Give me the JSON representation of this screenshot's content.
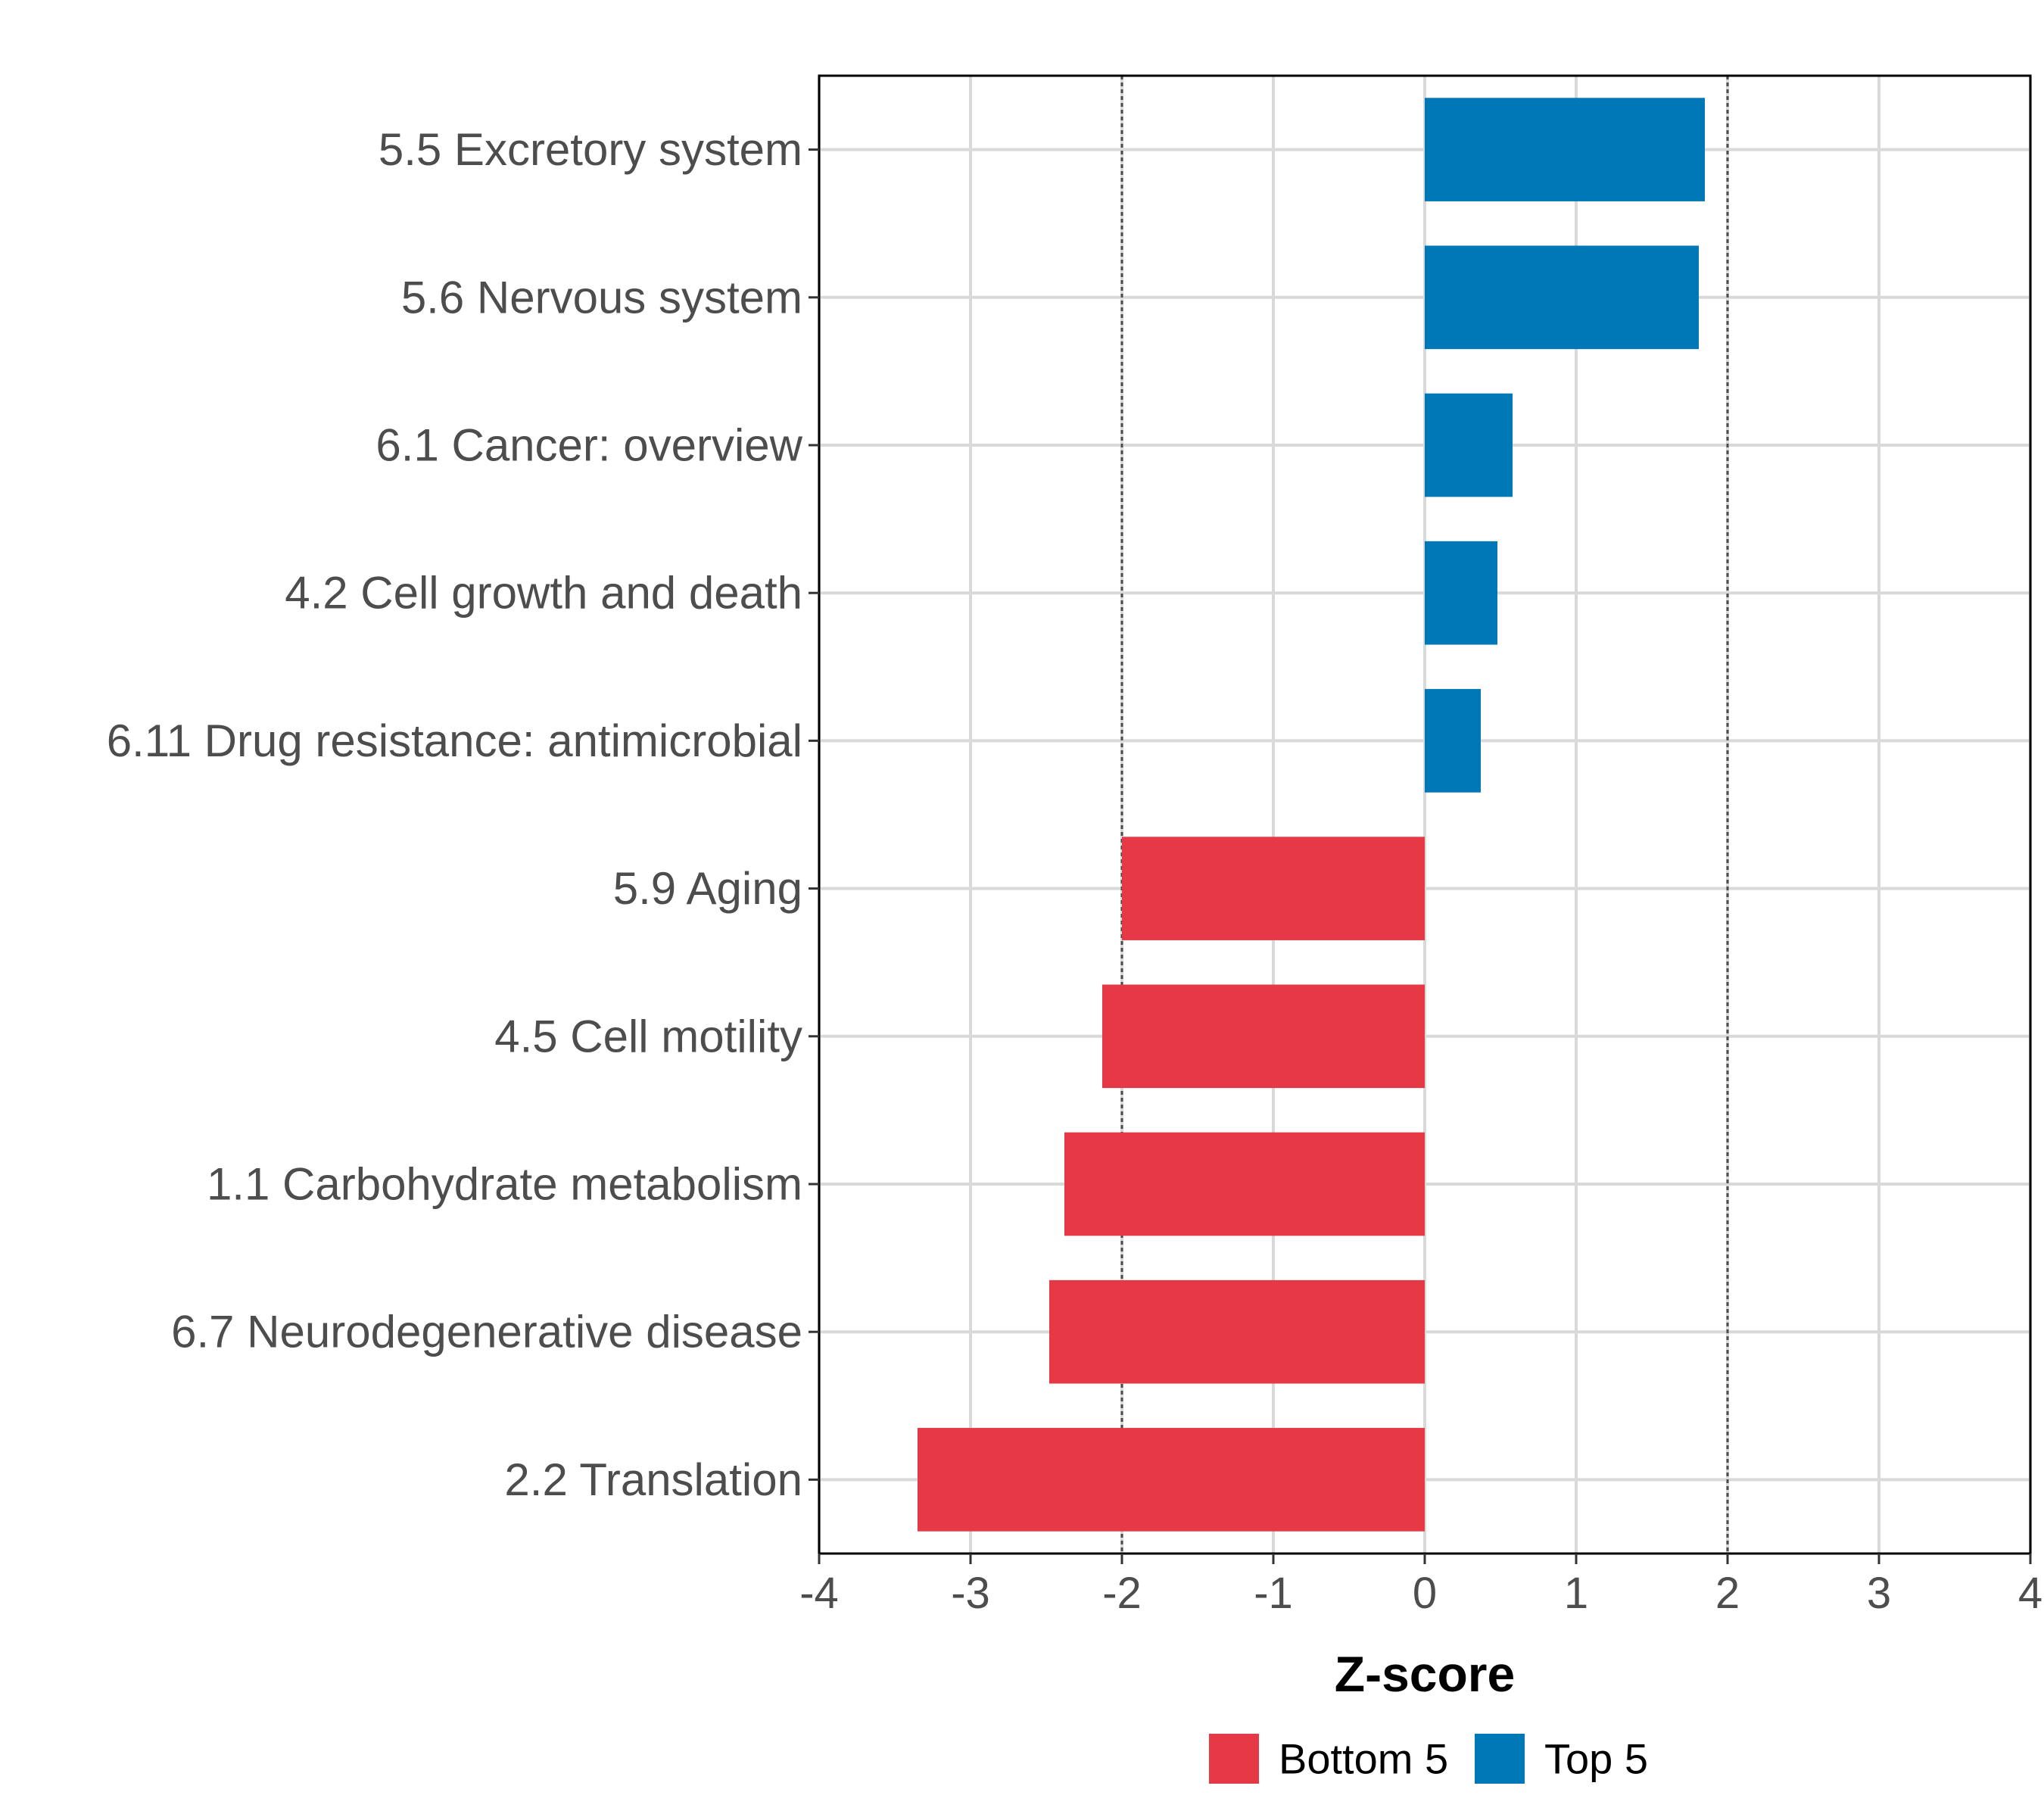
{
  "chart_data": {
    "type": "bar",
    "orientation": "horizontal",
    "title": "",
    "xlabel": "Z-score",
    "ylabel": "",
    "xlim": [
      -4,
      4
    ],
    "xticks": [
      -4,
      -3,
      -2,
      -1,
      0,
      1,
      2,
      3,
      4
    ],
    "reference_lines": [
      -2,
      2
    ],
    "grid": true,
    "legend_position": "bottom",
    "categories": [
      "5.5 Excretory system",
      "5.6 Nervous system",
      "6.1 Cancer: overview",
      "4.2 Cell growth and death",
      "6.11 Drug resistance: antimicrobial",
      "5.9 Aging",
      "4.5 Cell motility",
      "1.1 Carbohydrate metabolism",
      "6.7 Neurodegenerative disease",
      "2.2 Translation"
    ],
    "values": [
      1.85,
      1.81,
      0.58,
      0.48,
      0.37,
      -2.0,
      -2.13,
      -2.38,
      -2.48,
      -3.35
    ],
    "groups": [
      "Top 5",
      "Top 5",
      "Top 5",
      "Top 5",
      "Top 5",
      "Bottom 5",
      "Bottom 5",
      "Bottom 5",
      "Bottom 5",
      "Bottom 5"
    ],
    "legend": [
      {
        "name": "Bottom 5",
        "color": "#e63946"
      },
      {
        "name": "Top 5",
        "color": "#0077b6"
      }
    ],
    "colors": {
      "Top 5": "#0077b6",
      "Bottom 5": "#e63946"
    }
  }
}
